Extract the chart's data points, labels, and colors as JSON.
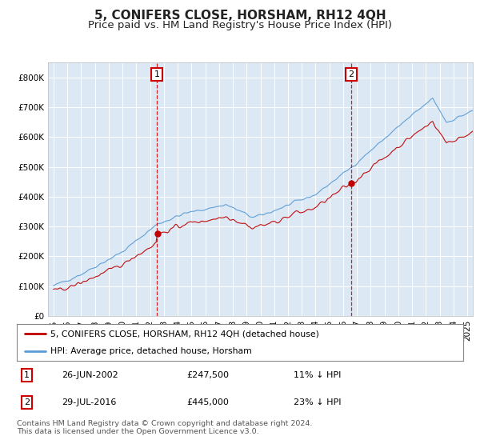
{
  "title": "5, CONIFERS CLOSE, HORSHAM, RH12 4QH",
  "subtitle": "Price paid vs. HM Land Registry's House Price Index (HPI)",
  "ylim": [
    0,
    850000
  ],
  "yticks": [
    0,
    100000,
    200000,
    300000,
    400000,
    500000,
    600000,
    700000,
    800000
  ],
  "ytick_labels": [
    "£0",
    "£100K",
    "£200K",
    "£300K",
    "£400K",
    "£500K",
    "£600K",
    "£700K",
    "£800K"
  ],
  "plot_bg_color": "#dce9f5",
  "grid_color": "#ffffff",
  "hpi_color": "#5b9bd5",
  "price_color": "#c00000",
  "vline_color": "#cc0000",
  "sale1_date": 2002.49,
  "sale1_price": 247500,
  "sale2_date": 2016.58,
  "sale2_price": 445000,
  "legend_label1": "5, CONIFERS CLOSE, HORSHAM, RH12 4QH (detached house)",
  "legend_label2": "HPI: Average price, detached house, Horsham",
  "table_row1": [
    "1",
    "26-JUN-2002",
    "£247,500",
    "11% ↓ HPI"
  ],
  "table_row2": [
    "2",
    "29-JUL-2016",
    "£445,000",
    "23% ↓ HPI"
  ],
  "footnote": "Contains HM Land Registry data © Crown copyright and database right 2024.\nThis data is licensed under the Open Government Licence v3.0.",
  "title_fontsize": 11,
  "subtitle_fontsize": 9.5,
  "tick_fontsize": 7.5,
  "xstart": 1994.6,
  "xend": 2025.4
}
